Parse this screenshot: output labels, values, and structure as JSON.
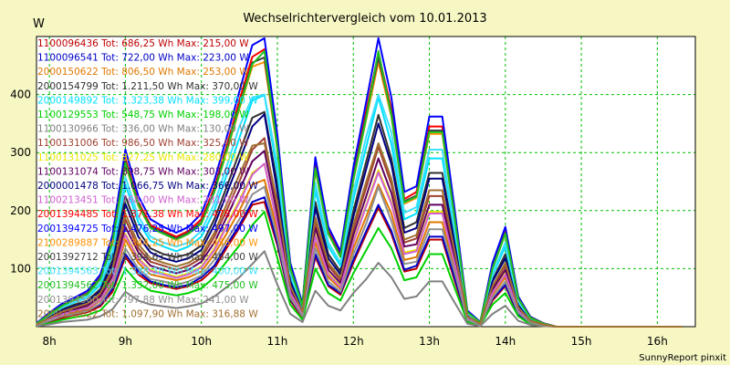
{
  "chart_data": {
    "type": "line",
    "title": "Wechselrichtervergleich vom 10.01.2013",
    "ylabel": "W",
    "xlabel": "",
    "credit": "SunnyReport pinxit",
    "xlim": [
      7.83,
      16.5
    ],
    "ylim": [
      0,
      500
    ],
    "yticks": [
      100,
      200,
      300,
      400
    ],
    "xticks": [
      8,
      9,
      10,
      11,
      12,
      13,
      14,
      15,
      16
    ],
    "xtick_labels": [
      "8h",
      "9h",
      "10h",
      "11h",
      "12h",
      "13h",
      "14h",
      "15h",
      "16h"
    ],
    "grid": true,
    "legend_placement": "top-left",
    "x": [
      7.83,
      8.0,
      8.17,
      8.33,
      8.5,
      8.67,
      8.83,
      9.0,
      9.17,
      9.33,
      9.5,
      9.67,
      9.83,
      10.0,
      10.17,
      10.33,
      10.5,
      10.67,
      10.83,
      11.0,
      11.17,
      11.33,
      11.5,
      11.67,
      11.83,
      12.0,
      12.17,
      12.33,
      12.5,
      12.67,
      12.83,
      13.0,
      13.17,
      13.33,
      13.5,
      13.67,
      13.83,
      14.0,
      14.17,
      14.33,
      14.5,
      14.67,
      14.83,
      15.0,
      15.17,
      15.33,
      15.5,
      15.67,
      15.83,
      16.0,
      16.17,
      16.33
    ],
    "series": [
      {
        "name": "1100096436 Tot: 686,25 Wh Max: 215,00 W",
        "color": "#c00000",
        "values": [
          2,
          8,
          15,
          20,
          25,
          35,
          60,
          120,
          90,
          75,
          70,
          65,
          70,
          80,
          100,
          135,
          170,
          210,
          215,
          140,
          45,
          15,
          120,
          70,
          55,
          110,
          160,
          205,
          160,
          95,
          100,
          150,
          150,
          80,
          10,
          2,
          45,
          70,
          20,
          5,
          2,
          0,
          0,
          0,
          0,
          0,
          0,
          0,
          0,
          0,
          0,
          0
        ]
      },
      {
        "name": "1100096541 Tot: 722,00 Wh Max: 223,00 W",
        "color": "#0000c8",
        "values": [
          2,
          10,
          18,
          22,
          28,
          38,
          65,
          125,
          95,
          78,
          72,
          68,
          72,
          85,
          105,
          140,
          175,
          215,
          223,
          145,
          48,
          18,
          125,
          72,
          58,
          115,
          165,
          210,
          165,
          98,
          105,
          155,
          155,
          85,
          12,
          3,
          48,
          72,
          22,
          6,
          3,
          0,
          0,
          0,
          0,
          0,
          0,
          0,
          0,
          0,
          0,
          0
        ]
      },
      {
        "name": "2000150622 Tot: 806,50 Wh Max: 253,00 W",
        "color": "#e07800",
        "values": [
          3,
          12,
          20,
          25,
          30,
          45,
          75,
          150,
          110,
          90,
          85,
          80,
          85,
          95,
          125,
          160,
          200,
          245,
          253,
          165,
          55,
          20,
          145,
          85,
          65,
          135,
          190,
          245,
          195,
          115,
          120,
          180,
          180,
          100,
          15,
          3,
          55,
          85,
          25,
          8,
          3,
          0,
          0,
          0,
          0,
          0,
          0,
          0,
          0,
          0,
          0,
          0
        ]
      },
      {
        "name": "2000154799 Tot: 1.211,50 Wh Max: 370,00 W",
        "color": "#303030",
        "values": [
          4,
          18,
          30,
          38,
          45,
          65,
          115,
          225,
          165,
          135,
          125,
          120,
          125,
          140,
          185,
          240,
          300,
          360,
          370,
          245,
          80,
          30,
          215,
          125,
          95,
          200,
          285,
          365,
          290,
          170,
          180,
          265,
          265,
          150,
          20,
          5,
          80,
          125,
          38,
          12,
          5,
          0,
          0,
          0,
          0,
          0,
          0,
          0,
          0,
          0,
          0,
          0
        ]
      },
      {
        "name": "2000149892 Tot: 1.323,38 Wh Max: 399,00 W",
        "color": "#00e0ff",
        "values": [
          5,
          20,
          33,
          42,
          50,
          72,
          125,
          245,
          180,
          148,
          138,
          130,
          138,
          155,
          200,
          260,
          325,
          390,
          399,
          265,
          88,
          32,
          235,
          138,
          105,
          220,
          310,
          395,
          315,
          185,
          195,
          290,
          290,
          165,
          22,
          6,
          88,
          138,
          42,
          14,
          5,
          0,
          0,
          0,
          0,
          0,
          0,
          0,
          0,
          0,
          0,
          0
        ]
      },
      {
        "name": "1100129553 Tot: 548,75 Wh Max: 198,00 W",
        "color": "#00d000",
        "values": [
          2,
          6,
          12,
          16,
          20,
          28,
          50,
          100,
          75,
          62,
          58,
          54,
          58,
          66,
          85,
          112,
          140,
          175,
          198,
          118,
          38,
          12,
          100,
          58,
          45,
          92,
          132,
          170,
          135,
          80,
          85,
          125,
          125,
          68,
          8,
          2,
          38,
          58,
          18,
          4,
          2,
          0,
          0,
          0,
          0,
          0,
          0,
          0,
          0,
          0,
          0,
          0
        ]
      },
      {
        "name": "1100130966 Tot: 336,00 Wh Max: 130,00 W",
        "color": "#808080",
        "values": [
          1,
          4,
          8,
          10,
          12,
          18,
          30,
          60,
          45,
          38,
          35,
          32,
          35,
          40,
          52,
          68,
          85,
          108,
          130,
          72,
          22,
          8,
          62,
          36,
          28,
          58,
          82,
          110,
          85,
          48,
          52,
          78,
          78,
          42,
          5,
          1,
          22,
          36,
          10,
          3,
          1,
          0,
          0,
          0,
          0,
          0,
          0,
          0,
          0,
          0,
          0,
          0
        ]
      },
      {
        "name": "1100131006 Tot: 986,50 Wh Max: 325,00 W",
        "color": "#a04030",
        "values": [
          3,
          15,
          25,
          32,
          38,
          55,
          95,
          185,
          135,
          112,
          105,
          98,
          105,
          118,
          155,
          200,
          250,
          305,
          325,
          205,
          68,
          25,
          180,
          105,
          80,
          168,
          240,
          310,
          245,
          145,
          152,
          225,
          225,
          128,
          18,
          4,
          68,
          105,
          32,
          10,
          4,
          0,
          0,
          0,
          0,
          0,
          0,
          0,
          0,
          0,
          0,
          0
        ]
      },
      {
        "name": "1100131025 Tot: 827,25 Wh Max: 280,00 W",
        "color": "#e8e800",
        "values": [
          3,
          12,
          22,
          28,
          33,
          48,
          82,
          160,
          118,
          98,
          92,
          86,
          92,
          104,
          135,
          175,
          218,
          265,
          280,
          178,
          60,
          22,
          158,
          92,
          70,
          148,
          210,
          270,
          215,
          128,
          132,
          198,
          198,
          112,
          15,
          3,
          60,
          92,
          28,
          9,
          3,
          0,
          0,
          0,
          0,
          0,
          0,
          0,
          0,
          0,
          0,
          0
        ]
      },
      {
        "name": "1100131074 Tot: 898,75 Wh Max: 303,00 W",
        "color": "#600060",
        "values": [
          3,
          14,
          24,
          30,
          36,
          52,
          88,
          172,
          128,
          105,
          98,
          92,
          98,
          112,
          145,
          188,
          235,
          285,
          303,
          192,
          64,
          24,
          170,
          98,
          75,
          158,
          225,
          290,
          230,
          138,
          142,
          210,
          210,
          120,
          16,
          4,
          64,
          98,
          30,
          10,
          4,
          0,
          0,
          0,
          0,
          0,
          0,
          0,
          0,
          0,
          0,
          0
        ]
      },
      {
        "name": "2000001478 Tot: 1.066,75 Wh Max: 366,00 W",
        "color": "#000080",
        "values": [
          4,
          16,
          28,
          35,
          42,
          62,
          108,
          212,
          155,
          128,
          118,
          112,
          118,
          132,
          175,
          228,
          285,
          345,
          366,
          232,
          78,
          28,
          205,
          118,
          90,
          190,
          272,
          350,
          280,
          162,
          170,
          255,
          255,
          145,
          20,
          5,
          78,
          118,
          36,
          11,
          4,
          0,
          0,
          0,
          0,
          0,
          0,
          0,
          0,
          0,
          0,
          0
        ]
      },
      {
        "name": "1100213451 Tot: 768,00 Wh Max: 281,00 W",
        "color": "#d060d0",
        "values": [
          3,
          12,
          21,
          27,
          32,
          46,
          80,
          158,
          116,
          96,
          90,
          84,
          90,
          102,
          132,
          172,
          214,
          262,
          281,
          175,
          58,
          22,
          155,
          90,
          68,
          145,
          208,
          266,
          212,
          125,
          130,
          195,
          195,
          110,
          14,
          3,
          58,
          90,
          27,
          8,
          3,
          0,
          0,
          0,
          0,
          0,
          0,
          0,
          0,
          0,
          0,
          0
        ]
      },
      {
        "name": "2001394485 Tot: 1.371,38 Wh Max: 478,00 W",
        "color": "#ff0000",
        "values": [
          5,
          22,
          38,
          48,
          58,
          85,
          150,
          290,
          215,
          175,
          165,
          155,
          165,
          185,
          240,
          310,
          390,
          465,
          478,
          315,
          105,
          38,
          280,
          165,
          125,
          262,
          372,
          472,
          375,
          220,
          232,
          345,
          345,
          195,
          26,
          7,
          105,
          165,
          50,
          16,
          6,
          0,
          0,
          0,
          0,
          0,
          0,
          0,
          0,
          0,
          0,
          0
        ]
      },
      {
        "name": "2001394725 Tot: 1.476,25 Wh Max: 497,00 W",
        "color": "#0000ff",
        "values": [
          6,
          24,
          40,
          50,
          62,
          90,
          158,
          305,
          225,
          185,
          172,
          162,
          172,
          195,
          252,
          325,
          405,
          485,
          497,
          330,
          110,
          40,
          292,
          172,
          130,
          275,
          388,
          497,
          395,
          232,
          242,
          362,
          362,
          205,
          28,
          8,
          110,
          172,
          52,
          17,
          6,
          0,
          0,
          0,
          0,
          0,
          0,
          0,
          0,
          0,
          0,
          0
        ]
      },
      {
        "name": "2100289887 Tot: 1.344,25 Wh Max: 456,00 W",
        "color": "#ff9000",
        "values": [
          5,
          21,
          36,
          46,
          56,
          82,
          145,
          280,
          208,
          170,
          160,
          150,
          160,
          178,
          232,
          300,
          375,
          448,
          456,
          305,
          100,
          36,
          270,
          160,
          120,
          252,
          358,
          456,
          362,
          212,
          222,
          332,
          332,
          188,
          25,
          7,
          100,
          160,
          48,
          15,
          5,
          0,
          0,
          0,
          0,
          0,
          0,
          0,
          0,
          0,
          0,
          0
        ]
      },
      {
        "name": "2001392712 Tot: 1.394,63 Wh Max: 464,00 W",
        "color": "#404040",
        "values": [
          5,
          22,
          37,
          47,
          57,
          84,
          148,
          285,
          212,
          172,
          162,
          152,
          162,
          180,
          235,
          305,
          380,
          455,
          464,
          310,
          102,
          37,
          275,
          162,
          122,
          258,
          365,
          464,
          368,
          216,
          226,
          338,
          338,
          192,
          25,
          7,
          102,
          162,
          49,
          16,
          6,
          0,
          0,
          0,
          0,
          0,
          0,
          0,
          0,
          0,
          0,
          0
        ]
      },
      {
        "name": "2001394563 Tot: 1.328,38 Wh Max: 400,00 W",
        "color": "#40e0ff",
        "values": [
          5,
          20,
          34,
          43,
          52,
          76,
          132,
          258,
          190,
          155,
          145,
          138,
          145,
          165,
          212,
          275,
          345,
          395,
          400,
          280,
          92,
          34,
          248,
          145,
          110,
          232,
          328,
          400,
          335,
          196,
          206,
          305,
          305,
          172,
          23,
          6,
          92,
          145,
          44,
          14,
          5,
          0,
          0,
          0,
          0,
          0,
          0,
          0,
          0,
          0,
          0,
          0
        ]
      },
      {
        "name": "2001394562 Tot: 1.332,00 Wh Max: 475,00 W",
        "color": "#20c020",
        "values": [
          5,
          21,
          36,
          46,
          56,
          82,
          145,
          282,
          210,
          170,
          160,
          150,
          160,
          178,
          232,
          302,
          378,
          452,
          475,
          308,
          100,
          36,
          272,
          160,
          120,
          254,
          360,
          475,
          364,
          214,
          224,
          335,
          335,
          190,
          25,
          7,
          100,
          160,
          48,
          15,
          5,
          0,
          0,
          0,
          0,
          0,
          0,
          0,
          0,
          0,
          0,
          0
        ]
      },
      {
        "name": "2001394560 Tot: 797,88 Wh Max: 241,00 W",
        "color": "#909090",
        "values": [
          3,
          10,
          18,
          22,
          27,
          40,
          70,
          135,
          100,
          82,
          78,
          72,
          78,
          88,
          115,
          148,
          185,
          228,
          241,
          152,
          50,
          18,
          135,
          78,
          60,
          125,
          178,
          241,
          182,
          108,
          112,
          168,
          168,
          95,
          12,
          3,
          50,
          78,
          24,
          7,
          3,
          0,
          0,
          0,
          0,
          0,
          0,
          0,
          0,
          0,
          0,
          0
        ]
      },
      {
        "name": "2000150622 Tot: 1.097,90 Wh Max: 316,88 W",
        "color": "#a07030",
        "values": [
          4,
          15,
          26,
          33,
          40,
          58,
          100,
          195,
          142,
          118,
          110,
          104,
          110,
          124,
          162,
          210,
          262,
          312,
          316,
          215,
          70,
          26,
          188,
          110,
          84,
          176,
          250,
          316,
          255,
          150,
          158,
          235,
          235,
          132,
          18,
          5,
          70,
          110,
          33,
          10,
          4,
          0,
          0,
          0,
          0,
          0,
          0,
          0,
          0,
          0,
          0,
          0
        ]
      }
    ]
  }
}
